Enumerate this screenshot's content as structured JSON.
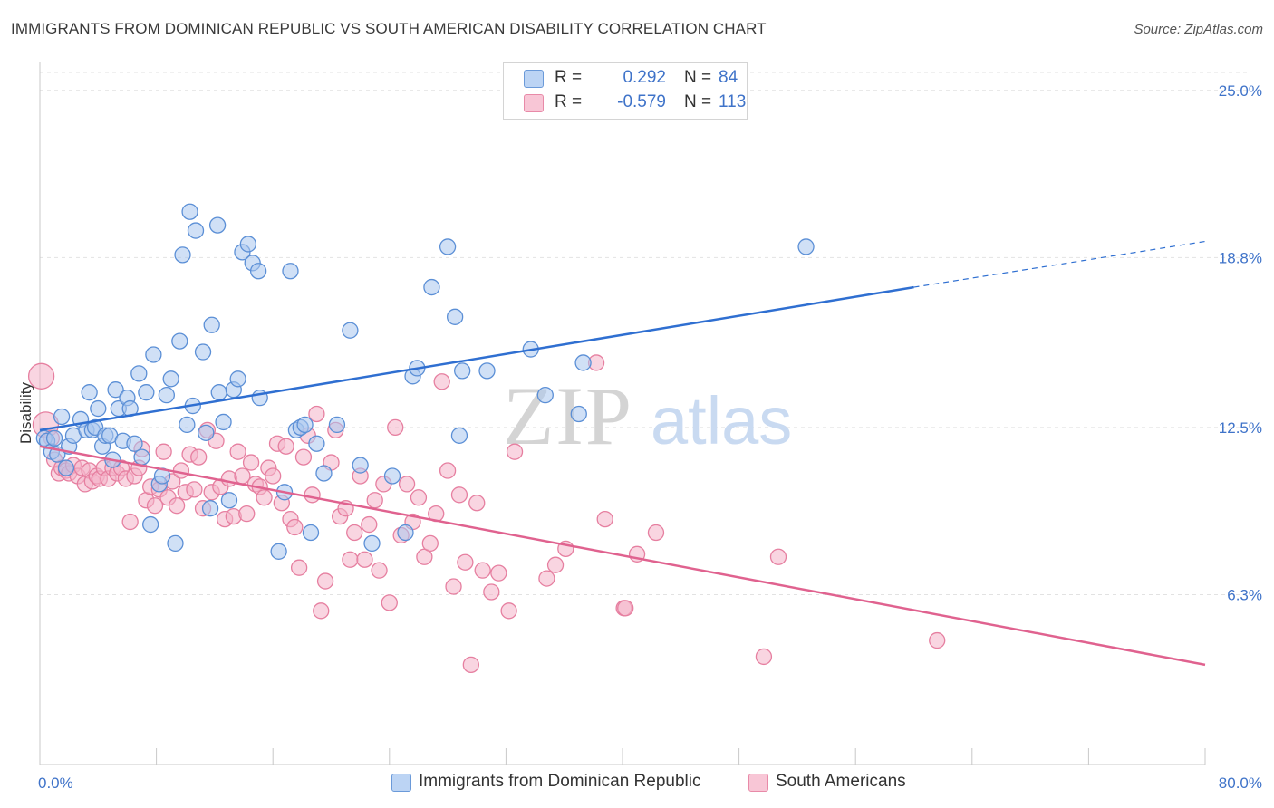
{
  "header": {
    "title": "IMMIGRANTS FROM DOMINICAN REPUBLIC VS SOUTH AMERICAN DISABILITY CORRELATION CHART",
    "source": "Source: ZipAtlas.com"
  },
  "watermark": {
    "zip": "ZIP",
    "atlas": "atlas"
  },
  "legend": {
    "rows": [
      {
        "r_label": "R =",
        "r_value": "0.292",
        "n_label": "N =",
        "n_value": "84"
      },
      {
        "r_label": "R =",
        "r_value": "-0.579",
        "n_label": "N =",
        "n_value": "113"
      }
    ]
  },
  "colors": {
    "blue_fill": "#a9c6ef",
    "blue_stroke": "#5b8fd6",
    "blue_line": "#2f6fd1",
    "pink_fill": "#f4b3c8",
    "pink_stroke": "#e67fa0",
    "pink_line": "#e0628f",
    "grid": "#e2e2e2",
    "tick_text": "#3f73c9"
  },
  "chart_data": {
    "type": "scatter",
    "ylabel": "Disability",
    "xlim": [
      0,
      80
    ],
    "ylim": [
      0,
      26
    ],
    "x_tick_labels": [
      "0.0%",
      "80.0%"
    ],
    "y_ticks": [
      {
        "value": 6.3,
        "label": "6.3%"
      },
      {
        "value": 12.5,
        "label": "12.5%"
      },
      {
        "value": 18.8,
        "label": "18.8%"
      },
      {
        "value": 25.0,
        "label": "25.0%"
      }
    ],
    "series": [
      {
        "name": "Immigrants from Dominican Republic",
        "trend": {
          "x0": 0,
          "y0": 12.4,
          "x1": 60,
          "y1": 17.7,
          "dash_to_x": 80,
          "dash_to_y": 19.4
        },
        "points": [
          [
            0.3,
            12.1
          ],
          [
            0.5,
            12.0
          ],
          [
            0.8,
            11.6
          ],
          [
            1.0,
            12.1
          ],
          [
            1.2,
            11.5
          ],
          [
            1.5,
            12.9
          ],
          [
            1.8,
            11.0
          ],
          [
            2.0,
            11.8
          ],
          [
            2.3,
            12.2
          ],
          [
            2.8,
            12.8
          ],
          [
            3.2,
            12.4
          ],
          [
            3.4,
            13.8
          ],
          [
            3.6,
            12.4
          ],
          [
            3.8,
            12.5
          ],
          [
            4.0,
            13.2
          ],
          [
            4.3,
            11.8
          ],
          [
            4.5,
            12.2
          ],
          [
            4.8,
            12.2
          ],
          [
            5.0,
            11.3
          ],
          [
            5.2,
            13.9
          ],
          [
            5.4,
            13.2
          ],
          [
            5.7,
            12.0
          ],
          [
            6.0,
            13.6
          ],
          [
            6.2,
            13.2
          ],
          [
            6.5,
            11.9
          ],
          [
            6.8,
            14.5
          ],
          [
            7.0,
            11.4
          ],
          [
            7.3,
            13.8
          ],
          [
            7.6,
            8.9
          ],
          [
            7.8,
            15.2
          ],
          [
            8.2,
            10.4
          ],
          [
            8.4,
            10.7
          ],
          [
            8.7,
            13.7
          ],
          [
            9.0,
            14.3
          ],
          [
            9.3,
            8.2
          ],
          [
            9.6,
            15.7
          ],
          [
            9.8,
            18.9
          ],
          [
            10.1,
            12.6
          ],
          [
            10.3,
            20.5
          ],
          [
            10.5,
            13.3
          ],
          [
            10.7,
            19.8
          ],
          [
            11.2,
            15.3
          ],
          [
            11.4,
            12.3
          ],
          [
            11.8,
            16.3
          ],
          [
            11.7,
            9.5
          ],
          [
            12.2,
            20.0
          ],
          [
            12.3,
            13.8
          ],
          [
            12.6,
            12.7
          ],
          [
            13.0,
            9.8
          ],
          [
            13.3,
            13.9
          ],
          [
            13.6,
            14.3
          ],
          [
            13.9,
            19.0
          ],
          [
            14.3,
            19.3
          ],
          [
            14.6,
            18.6
          ],
          [
            15.0,
            18.3
          ],
          [
            15.1,
            13.6
          ],
          [
            16.4,
            7.9
          ],
          [
            16.8,
            10.1
          ],
          [
            17.2,
            18.3
          ],
          [
            17.6,
            12.4
          ],
          [
            17.9,
            12.5
          ],
          [
            18.2,
            12.6
          ],
          [
            18.6,
            8.6
          ],
          [
            19.0,
            11.9
          ],
          [
            19.5,
            10.8
          ],
          [
            20.4,
            12.6
          ],
          [
            21.3,
            16.1
          ],
          [
            22.0,
            11.1
          ],
          [
            22.8,
            8.2
          ],
          [
            24.2,
            10.7
          ],
          [
            25.1,
            8.6
          ],
          [
            25.6,
            14.4
          ],
          [
            25.9,
            14.7
          ],
          [
            26.9,
            17.7
          ],
          [
            28.0,
            19.2
          ],
          [
            28.5,
            16.6
          ],
          [
            28.8,
            12.2
          ],
          [
            29.0,
            14.6
          ],
          [
            30.7,
            14.6
          ],
          [
            33.7,
            15.4
          ],
          [
            34.7,
            13.7
          ],
          [
            37.0,
            13.0
          ],
          [
            37.3,
            14.9
          ],
          [
            52.6,
            19.2
          ]
        ]
      },
      {
        "name": "South Americans",
        "trend": {
          "x0": 0,
          "y0": 11.8,
          "x1": 80,
          "y1": 3.7
        },
        "points": [
          [
            0.1,
            14.4
          ],
          [
            0.4,
            12.6
          ],
          [
            0.8,
            12.1
          ],
          [
            1.0,
            11.3
          ],
          [
            1.3,
            10.8
          ],
          [
            1.5,
            11.0
          ],
          [
            1.8,
            10.9
          ],
          [
            2.0,
            10.8
          ],
          [
            2.3,
            11.1
          ],
          [
            2.6,
            10.7
          ],
          [
            2.9,
            11.0
          ],
          [
            3.1,
            10.4
          ],
          [
            3.4,
            10.9
          ],
          [
            3.6,
            10.5
          ],
          [
            3.9,
            10.7
          ],
          [
            4.1,
            10.6
          ],
          [
            4.4,
            11.0
          ],
          [
            4.7,
            10.6
          ],
          [
            5.0,
            11.0
          ],
          [
            5.3,
            10.8
          ],
          [
            5.6,
            11.0
          ],
          [
            5.9,
            10.6
          ],
          [
            6.2,
            9.0
          ],
          [
            6.5,
            10.7
          ],
          [
            6.8,
            11.0
          ],
          [
            7.0,
            11.7
          ],
          [
            7.3,
            9.8
          ],
          [
            7.6,
            10.3
          ],
          [
            7.9,
            9.6
          ],
          [
            8.2,
            10.2
          ],
          [
            8.5,
            11.6
          ],
          [
            8.8,
            9.9
          ],
          [
            9.1,
            10.5
          ],
          [
            9.4,
            9.6
          ],
          [
            9.7,
            10.9
          ],
          [
            10.0,
            10.1
          ],
          [
            10.3,
            11.5
          ],
          [
            10.6,
            10.2
          ],
          [
            10.9,
            11.4
          ],
          [
            11.2,
            9.5
          ],
          [
            11.5,
            12.4
          ],
          [
            11.8,
            10.1
          ],
          [
            12.1,
            12.0
          ],
          [
            12.4,
            10.3
          ],
          [
            12.7,
            9.1
          ],
          [
            13.0,
            10.6
          ],
          [
            13.3,
            9.2
          ],
          [
            13.6,
            11.6
          ],
          [
            13.9,
            10.7
          ],
          [
            14.2,
            9.3
          ],
          [
            14.5,
            11.2
          ],
          [
            14.8,
            10.4
          ],
          [
            15.1,
            10.3
          ],
          [
            15.4,
            9.9
          ],
          [
            15.7,
            11.0
          ],
          [
            16.0,
            10.7
          ],
          [
            16.3,
            11.9
          ],
          [
            16.6,
            9.7
          ],
          [
            16.9,
            11.8
          ],
          [
            17.2,
            9.1
          ],
          [
            17.5,
            8.8
          ],
          [
            17.8,
            7.3
          ],
          [
            18.1,
            11.4
          ],
          [
            18.4,
            12.2
          ],
          [
            18.7,
            10.0
          ],
          [
            19.0,
            13.0
          ],
          [
            19.3,
            5.7
          ],
          [
            19.6,
            6.8
          ],
          [
            20.0,
            11.2
          ],
          [
            20.3,
            12.4
          ],
          [
            20.6,
            9.2
          ],
          [
            21.0,
            9.5
          ],
          [
            21.3,
            7.6
          ],
          [
            21.6,
            8.6
          ],
          [
            22.0,
            10.7
          ],
          [
            22.3,
            7.6
          ],
          [
            22.6,
            8.9
          ],
          [
            23.0,
            9.8
          ],
          [
            23.3,
            7.2
          ],
          [
            23.6,
            10.4
          ],
          [
            24.0,
            6.0
          ],
          [
            24.4,
            12.5
          ],
          [
            24.8,
            8.5
          ],
          [
            25.2,
            10.4
          ],
          [
            25.6,
            9.0
          ],
          [
            26.0,
            9.9
          ],
          [
            26.4,
            7.7
          ],
          [
            26.8,
            8.2
          ],
          [
            27.2,
            9.3
          ],
          [
            27.6,
            14.2
          ],
          [
            28.0,
            10.9
          ],
          [
            28.4,
            6.6
          ],
          [
            28.8,
            10.0
          ],
          [
            29.2,
            7.5
          ],
          [
            29.6,
            3.7
          ],
          [
            30.0,
            9.7
          ],
          [
            30.4,
            7.2
          ],
          [
            31.0,
            6.4
          ],
          [
            31.5,
            7.1
          ],
          [
            32.2,
            5.7
          ],
          [
            32.6,
            11.6
          ],
          [
            34.8,
            6.9
          ],
          [
            35.4,
            7.4
          ],
          [
            36.1,
            8.0
          ],
          [
            38.2,
            14.9
          ],
          [
            38.8,
            9.1
          ],
          [
            40.1,
            5.8
          ],
          [
            41.0,
            7.8
          ],
          [
            42.3,
            8.6
          ],
          [
            49.7,
            4.0
          ],
          [
            50.7,
            7.7
          ],
          [
            61.6,
            4.6
          ],
          [
            40.2,
            5.8
          ]
        ]
      }
    ]
  },
  "bottom_legend": [
    {
      "label": "Immigrants from Dominican Republic"
    },
    {
      "label": "South Americans"
    }
  ]
}
